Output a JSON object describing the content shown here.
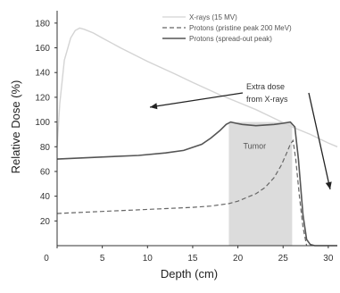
{
  "chart_data": {
    "type": "line",
    "title": "",
    "xlabel": "Depth (cm)",
    "ylabel": "Relative Dose (%)",
    "xlim": [
      0,
      31
    ],
    "ylim": [
      0,
      190
    ],
    "x_ticks": [
      0,
      5,
      10,
      15,
      20,
      25,
      30
    ],
    "y_ticks": [
      20,
      40,
      60,
      80,
      100,
      120,
      140,
      160,
      180
    ],
    "grid": false,
    "legend_position": "top-right",
    "series": [
      {
        "name": "X-rays (15 MV)",
        "color": "#d4d4d4",
        "style": "solid",
        "x": [
          0,
          0.3,
          0.8,
          1.5,
          2.0,
          2.5,
          3,
          4,
          5,
          7,
          10,
          13,
          15,
          18,
          20,
          22,
          24,
          26,
          28,
          30,
          31
        ],
        "y": [
          80,
          115,
          150,
          168,
          174,
          176,
          175,
          172,
          168,
          160,
          149,
          139,
          132,
          122,
          116,
          110,
          103,
          96,
          90,
          83,
          80
        ]
      },
      {
        "name": "Protons (pristine peak 200 MeV)",
        "color": "#666666",
        "style": "dashed",
        "x": [
          0,
          3,
          6,
          9,
          12,
          15,
          17,
          19,
          20,
          21,
          22,
          23,
          24,
          24.8,
          25.4,
          25.8,
          26.1,
          26.4,
          26.8,
          27.2,
          27.6
        ],
        "y": [
          26,
          27,
          28,
          29,
          30,
          31,
          32,
          34,
          36,
          39,
          42,
          47,
          55,
          65,
          75,
          82,
          85,
          70,
          40,
          15,
          0
        ]
      },
      {
        "name": "Protons (spread-out peak)",
        "color": "#555555",
        "style": "solid",
        "x": [
          0,
          3,
          6,
          9,
          12,
          14,
          16,
          17,
          18,
          18.7,
          19.2,
          19.8,
          20.5,
          22,
          24,
          25,
          25.8,
          26.3,
          26.7,
          27.2,
          27.6,
          28,
          28.5,
          31
        ],
        "y": [
          70,
          71,
          72,
          73,
          75,
          77,
          82,
          87,
          93,
          98,
          100,
          99,
          98,
          97,
          98,
          99,
          100,
          96,
          70,
          25,
          5,
          1,
          0,
          0
        ]
      }
    ],
    "regions": [
      {
        "label": "Tumor",
        "x_start": 19,
        "x_end": 26,
        "y_top": 100,
        "color": "#dcdcdc"
      }
    ],
    "annotations": [
      {
        "lines": [
          "Extra dose",
          "from X-rays"
        ]
      }
    ]
  }
}
